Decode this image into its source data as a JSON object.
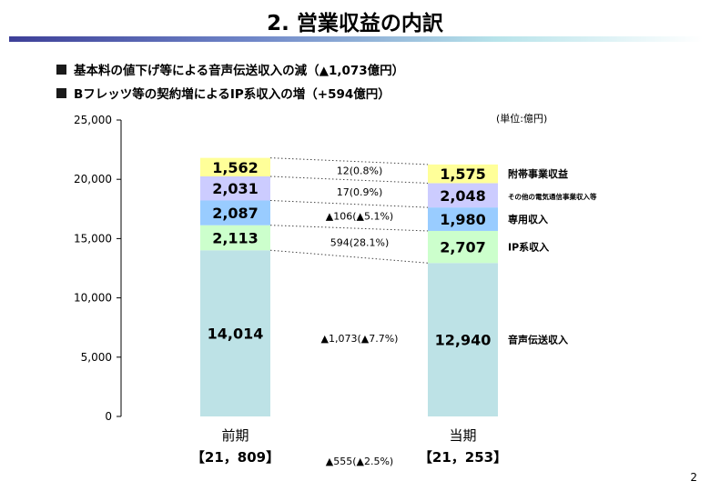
{
  "title": "2. 営業収益の内訳",
  "bullets": [
    "基本料の値下げ等による音声伝送収入の減（▲1,073億円）",
    "Bフレッツ等の契約増によるIP系収入の増（+594億円）"
  ],
  "page_number": "2",
  "colors": {
    "voice": "#bde2e6",
    "ip": "#ccffcc",
    "dedicated": "#99ccff",
    "other_telecom": "#ccccff",
    "incidental": "#ffff99",
    "title_rule_start": "#3d3f98"
  },
  "chart_data": {
    "type": "bar",
    "stacked": true,
    "unit_label": "(単位:億円)",
    "categories": [
      "前期",
      "当期"
    ],
    "category_totals": [
      "【21，809】",
      "【21，253】"
    ],
    "yticks": [
      "25,000",
      "20,000",
      "15,000",
      "10,000",
      "5,000",
      "0"
    ],
    "ylim": [
      0,
      25000
    ],
    "grid": false,
    "series": [
      {
        "name": "音声伝送収入",
        "values": [
          14014,
          12940
        ],
        "labels": [
          "14,014",
          "12,940"
        ],
        "change": "▲1,073(▲7.7%)",
        "color": "#bde2e6"
      },
      {
        "name": "IP系収入",
        "values": [
          2113,
          2707
        ],
        "labels": [
          "2,113",
          "2,707"
        ],
        "change": "594(28.1%)",
        "color": "#ccffcc"
      },
      {
        "name": "専用収入",
        "values": [
          2087,
          1980
        ],
        "labels": [
          "2,087",
          "1,980"
        ],
        "change": "▲106(▲5.1%)",
        "color": "#99ccff"
      },
      {
        "name": "その他の電気通信事業収入等",
        "values": [
          2031,
          2048
        ],
        "labels": [
          "2,031",
          "2,048"
        ],
        "change": "17(0.9%)",
        "color": "#ccccff"
      },
      {
        "name": "附帯事業収益",
        "values": [
          1562,
          1575
        ],
        "labels": [
          "1,562",
          "1,575"
        ],
        "change": "12(0.8%)",
        "color": "#ffff99"
      }
    ],
    "total_change": "▲555(▲2.5%)"
  }
}
